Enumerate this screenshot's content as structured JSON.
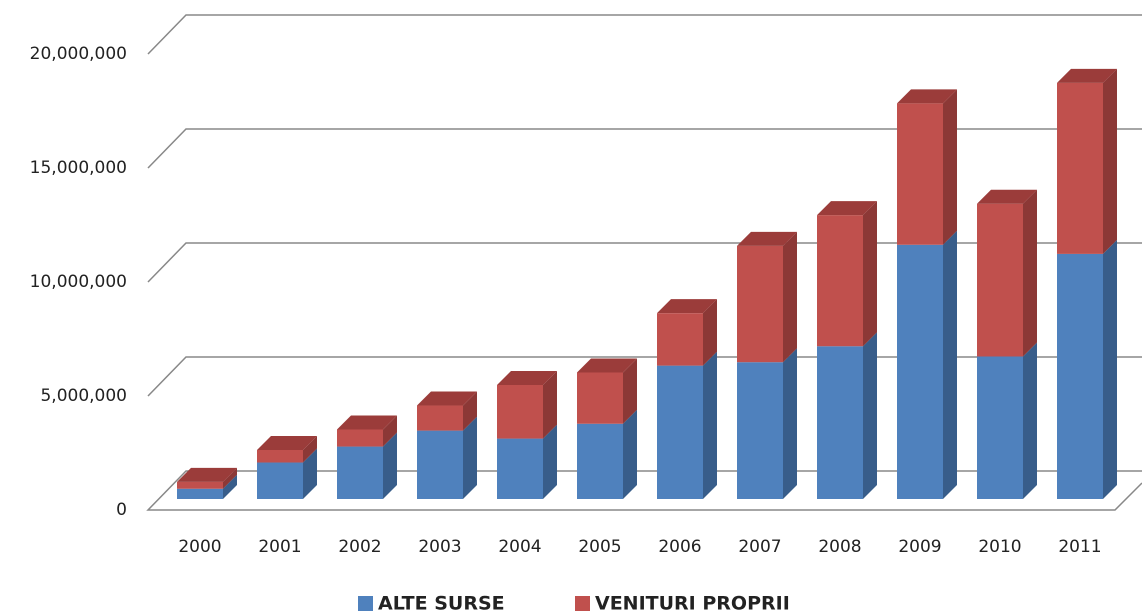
{
  "chart_data": {
    "type": "bar3d_stacked",
    "categories": [
      "2000",
      "2001",
      "2002",
      "2003",
      "2004",
      "2005",
      "2006",
      "2007",
      "2008",
      "2009",
      "2010",
      "2011"
    ],
    "series": [
      {
        "name": "ALTE SURSE",
        "color": "#4f81bd",
        "side": "#385d8a",
        "top": "#3f6798",
        "values": [
          450000,
          1600000,
          2300000,
          3000000,
          2650000,
          3300000,
          5850000,
          6000000,
          6700000,
          11150000,
          6250000,
          10750000
        ]
      },
      {
        "name": "VENITURI PROPRII",
        "color": "#c0504d",
        "side": "#8c3836",
        "top": "#9b3c3a",
        "values": [
          300000,
          550000,
          750000,
          1100000,
          2350000,
          2250000,
          2300000,
          5100000,
          5750000,
          6200000,
          6700000,
          7500000
        ]
      }
    ],
    "ylim": [
      0,
      20000000
    ],
    "yticks": [
      0,
      {
        "value": 5000000,
        "label": "5,000,000"
      },
      {
        "value": 10000000,
        "label": "10,000,000"
      },
      {
        "value": 15000000,
        "label": "15,000,000"
      },
      {
        "value": 20000000,
        "label": "20,000,000"
      }
    ],
    "grid": true,
    "legend": "bottom"
  }
}
